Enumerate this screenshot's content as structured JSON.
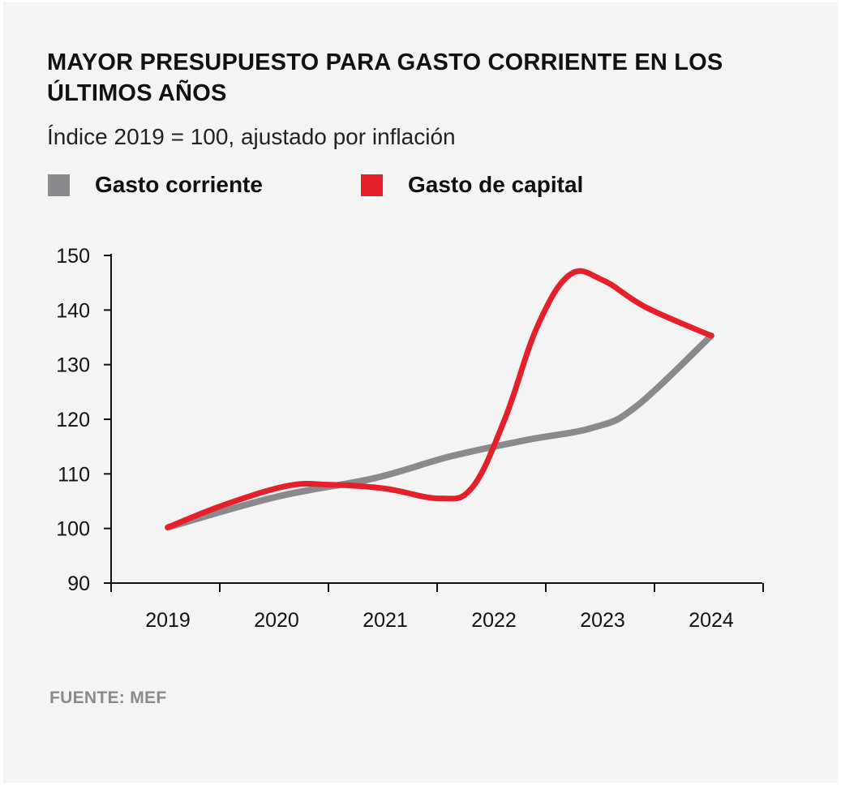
{
  "header": {
    "title": "MAYOR PRESUPUESTO PARA GASTO CORRIENTE EN LOS ÚLTIMOS AÑOS",
    "subtitle": "Índice 2019 = 100, ajustado por inflación"
  },
  "legend": [
    {
      "label": "Gasto corriente",
      "color": "#8a8a8c"
    },
    {
      "label": "Gasto de capital",
      "color": "#e5202b"
    }
  ],
  "source": "FUENTE: MEF",
  "chart_data": {
    "type": "line",
    "title": "MAYOR PRESUPUESTO PARA GASTO CORRIENTE EN LOS ÚLTIMOS AÑOS",
    "subtitle": "Índice 2019 = 100, ajustado por inflación",
    "xlabel": "",
    "ylabel": "",
    "categories": [
      "2019",
      "2020",
      "2021",
      "2022",
      "2023",
      "2024"
    ],
    "ylim": [
      90,
      150
    ],
    "yticks": [
      90,
      100,
      110,
      120,
      130,
      140,
      150
    ],
    "grid": false,
    "legend_position": "top-left",
    "series": [
      {
        "name": "Gasto corriente",
        "color": "#8a8a8c",
        "points": [
          {
            "x": 2019.0,
            "y": 100.2
          },
          {
            "x": 2020.0,
            "y": 105.8
          },
          {
            "x": 2020.9,
            "y": 109.2
          },
          {
            "x": 2021.6,
            "y": 113.2
          },
          {
            "x": 2022.3,
            "y": 116.2
          },
          {
            "x": 2022.9,
            "y": 118.4
          },
          {
            "x": 2023.3,
            "y": 122.2
          },
          {
            "x": 2024.0,
            "y": 135.3
          }
        ]
      },
      {
        "name": "Gasto de capital",
        "color": "#e5202b",
        "points": [
          {
            "x": 2019.0,
            "y": 100.2
          },
          {
            "x": 2019.5,
            "y": 104.2
          },
          {
            "x": 2020.1,
            "y": 107.8
          },
          {
            "x": 2020.5,
            "y": 108.0
          },
          {
            "x": 2021.0,
            "y": 107.3
          },
          {
            "x": 2021.5,
            "y": 105.5
          },
          {
            "x": 2021.8,
            "y": 107.5
          },
          {
            "x": 2022.1,
            "y": 120.0
          },
          {
            "x": 2022.4,
            "y": 137.0
          },
          {
            "x": 2022.7,
            "y": 146.5
          },
          {
            "x": 2023.0,
            "y": 145.5
          },
          {
            "x": 2023.4,
            "y": 140.5
          },
          {
            "x": 2024.0,
            "y": 135.3
          }
        ]
      }
    ]
  }
}
